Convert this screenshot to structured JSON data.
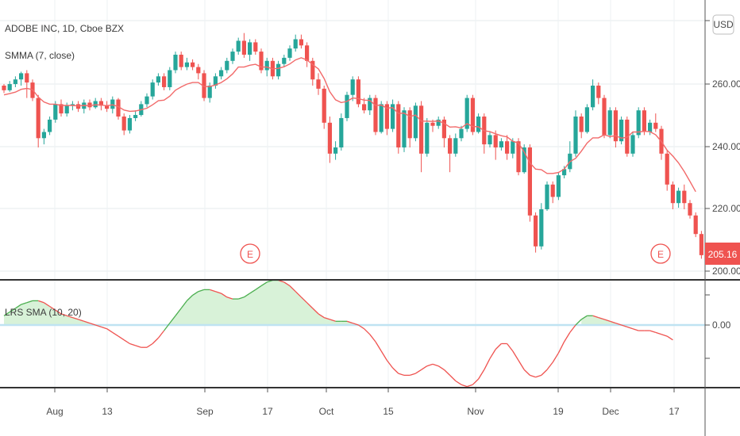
{
  "header": {
    "symbol_title": "ADOBE INC, 1D, Cboe BZX",
    "indicator1": "SMMA (7, close)",
    "indicator2": "LRS SMA (10, 20)",
    "currency_button": "USD"
  },
  "price_badge": "205.16",
  "earnings_marker": "E",
  "colors": {
    "up": "#26a69a",
    "down": "#ef5350",
    "smma": "#f26a6a",
    "lrs_up": "#4caf50",
    "lrs_down": "#ef5350",
    "fill": "#d8f2d8",
    "zero_line": "#bfe3f2"
  },
  "chart_data": [
    {
      "type": "candlestick",
      "title": "ADOBE INC, 1D, Cboe BZX",
      "ylim": [
        200,
        280
      ],
      "yticks": [
        "260.00",
        "240.00",
        "220.00",
        "200.00"
      ],
      "x_ticks": [
        "Aug",
        "13",
        "Sep",
        "17",
        "Oct",
        "15",
        "Nov",
        "19",
        "Dec",
        "17"
      ],
      "candles": [
        [
          260.0,
          258.5,
          260.5,
          257.6
        ],
        [
          258.5,
          260.5,
          261.5,
          258.0
        ],
        [
          260.5,
          262.0,
          263.0,
          259.5
        ],
        [
          262.0,
          264.0,
          264.5,
          260.0
        ],
        [
          264.0,
          261.0,
          265.0,
          256.0
        ],
        [
          261.0,
          256.0,
          262.0,
          255.0
        ],
        [
          256.0,
          243.0,
          257.0,
          240.0
        ],
        [
          243.0,
          245.0,
          246.0,
          241.0
        ],
        [
          245.0,
          249.0,
          250.0,
          244.0
        ],
        [
          249.0,
          254.0,
          255.0,
          248.0
        ],
        [
          254.0,
          251.0,
          255.5,
          250.0
        ],
        [
          251.0,
          253.5,
          254.5,
          250.0
        ],
        [
          253.5,
          254.0,
          255.0,
          252.0
        ],
        [
          254.0,
          252.5,
          255.0,
          251.5
        ],
        [
          252.5,
          254.5,
          255.5,
          251.0
        ],
        [
          254.5,
          253.0,
          255.5,
          252.0
        ],
        [
          253.0,
          255.0,
          256.0,
          252.5
        ],
        [
          255.0,
          253.5,
          256.0,
          252.0
        ],
        [
          253.5,
          252.5,
          255.0,
          251.5
        ],
        [
          252.5,
          255.5,
          256.5,
          251.0
        ],
        [
          255.5,
          250.0,
          256.0,
          249.0
        ],
        [
          250.0,
          245.5,
          251.0,
          244.0
        ],
        [
          245.5,
          249.5,
          250.5,
          244.5
        ],
        [
          249.5,
          250.5,
          252.0,
          248.5
        ],
        [
          250.5,
          254.0,
          255.0,
          250.0
        ],
        [
          254.0,
          256.5,
          257.5,
          253.0
        ],
        [
          256.5,
          261.0,
          262.0,
          255.5
        ],
        [
          261.0,
          263.0,
          264.0,
          260.0
        ],
        [
          263.0,
          259.5,
          264.0,
          258.5
        ],
        [
          259.5,
          265.0,
          266.0,
          258.5
        ],
        [
          265.0,
          270.0,
          271.0,
          264.0
        ],
        [
          270.0,
          266.0,
          271.0,
          265.0
        ],
        [
          266.0,
          267.5,
          269.0,
          265.0
        ],
        [
          267.5,
          266.0,
          268.5,
          265.0
        ],
        [
          266.0,
          264.0,
          267.0,
          262.0
        ],
        [
          264.0,
          256.0,
          265.0,
          255.0
        ],
        [
          256.0,
          260.0,
          261.0,
          254.5
        ],
        [
          260.0,
          263.0,
          264.0,
          259.0
        ],
        [
          263.0,
          265.0,
          266.0,
          262.0
        ],
        [
          265.0,
          268.0,
          269.0,
          264.0
        ],
        [
          268.0,
          271.0,
          272.0,
          267.0
        ],
        [
          271.0,
          274.5,
          275.5,
          270.0
        ],
        [
          274.5,
          270.0,
          277.0,
          269.0
        ],
        [
          270.0,
          274.0,
          275.0,
          268.0
        ],
        [
          274.0,
          271.0,
          275.0,
          270.0
        ],
        [
          271.0,
          265.0,
          272.0,
          264.0
        ],
        [
          265.0,
          268.0,
          269.0,
          263.0
        ],
        [
          268.0,
          263.0,
          269.0,
          262.0
        ],
        [
          263.0,
          267.0,
          268.0,
          262.0
        ],
        [
          267.0,
          269.0,
          270.0,
          266.0
        ],
        [
          269.0,
          272.0,
          273.0,
          268.0
        ],
        [
          272.0,
          275.0,
          276.5,
          271.0
        ],
        [
          275.0,
          273.0,
          276.5,
          272.0
        ],
        [
          273.0,
          268.0,
          274.0,
          266.0
        ],
        [
          268.0,
          262.0,
          269.0,
          260.0
        ],
        [
          262.0,
          259.0,
          264.0,
          257.0
        ],
        [
          259.0,
          248.0,
          260.0,
          246.0
        ],
        [
          248.0,
          238.0,
          250.0,
          235.0
        ],
        [
          238.0,
          240.0,
          242.0,
          236.0
        ],
        [
          240.0,
          249.5,
          251.0,
          239.0
        ],
        [
          249.5,
          257.0,
          258.0,
          248.5
        ],
        [
          257.0,
          262.0,
          263.0,
          255.0
        ],
        [
          262.0,
          254.0,
          263.0,
          253.0
        ],
        [
          254.0,
          252.0,
          256.0,
          251.0
        ],
        [
          252.0,
          256.0,
          257.0,
          250.5
        ],
        [
          256.0,
          245.0,
          257.0,
          244.0
        ],
        [
          245.0,
          254.0,
          255.0,
          244.5
        ],
        [
          254.0,
          246.0,
          255.0,
          244.0
        ],
        [
          246.0,
          254.0,
          255.5,
          245.0
        ],
        [
          254.0,
          240.0,
          255.0,
          238.0
        ],
        [
          240.0,
          252.0,
          253.0,
          238.5
        ],
        [
          252.0,
          243.0,
          253.0,
          240.0
        ],
        [
          243.0,
          253.5,
          254.5,
          242.0
        ],
        [
          253.5,
          238.0,
          255.0,
          232.0
        ],
        [
          238.0,
          248.0,
          249.5,
          237.0
        ],
        [
          248.0,
          247.0,
          249.0,
          245.0
        ],
        [
          247.0,
          249.0,
          250.0,
          246.0
        ],
        [
          249.0,
          243.0,
          250.0,
          240.0
        ],
        [
          243.0,
          238.0,
          244.0,
          232.0
        ],
        [
          238.0,
          243.0,
          244.5,
          237.0
        ],
        [
          243.0,
          246.0,
          247.0,
          242.0
        ],
        [
          246.0,
          256.0,
          257.0,
          245.0
        ],
        [
          256.0,
          245.0,
          257.0,
          244.0
        ],
        [
          245.0,
          250.0,
          251.0,
          244.5
        ],
        [
          250.0,
          241.0,
          251.0,
          238.0
        ],
        [
          241.0,
          244.0,
          245.0,
          240.0
        ],
        [
          244.0,
          240.0,
          245.5,
          236.0
        ],
        [
          240.0,
          242.0,
          243.0,
          239.0
        ],
        [
          242.0,
          238.0,
          244.0,
          236.0
        ],
        [
          238.0,
          242.0,
          243.0,
          236.5
        ],
        [
          242.0,
          232.0,
          243.0,
          231.0
        ],
        [
          232.0,
          240.0,
          241.0,
          231.5
        ],
        [
          240.0,
          218.0,
          241.0,
          216.0
        ],
        [
          218.0,
          208.0,
          219.0,
          206.0
        ],
        [
          208.0,
          220.0,
          222.0,
          207.0
        ],
        [
          220.0,
          228.0,
          229.0,
          219.5
        ],
        [
          228.0,
          224.0,
          229.0,
          222.0
        ],
        [
          224.0,
          231.0,
          232.0,
          223.0
        ],
        [
          231.0,
          233.0,
          234.0,
          230.0
        ],
        [
          233.0,
          238.0,
          242.0,
          232.0
        ],
        [
          238.0,
          250.0,
          252.0,
          237.0
        ],
        [
          250.0,
          245.0,
          251.0,
          243.0
        ],
        [
          245.0,
          253.0,
          254.0,
          244.5
        ],
        [
          253.0,
          260.0,
          262.0,
          252.0
        ],
        [
          260.0,
          256.0,
          261.0,
          254.0
        ],
        [
          256.0,
          244.0,
          257.0,
          243.0
        ],
        [
          244.0,
          252.0,
          253.0,
          243.0
        ],
        [
          252.0,
          242.0,
          253.0,
          240.0
        ],
        [
          242.0,
          249.0,
          250.0,
          241.0
        ],
        [
          249.0,
          238.0,
          250.0,
          237.0
        ],
        [
          238.0,
          244.0,
          245.0,
          237.0
        ],
        [
          244.0,
          252.0,
          253.0,
          243.0
        ],
        [
          252.0,
          245.0,
          253.0,
          244.0
        ],
        [
          245.0,
          248.0,
          249.0,
          244.0
        ],
        [
          248.0,
          246.0,
          251.0,
          245.0
        ],
        [
          246.0,
          238.0,
          247.0,
          236.0
        ],
        [
          238.0,
          228.0,
          239.0,
          226.0
        ],
        [
          228.0,
          222.0,
          229.0,
          220.0
        ],
        [
          222.0,
          226.0,
          227.0,
          220.5
        ],
        [
          226.0,
          222.0,
          228.0,
          220.0
        ],
        [
          222.0,
          218.0,
          223.0,
          217.0
        ],
        [
          218.0,
          212.0,
          219.0,
          211.0
        ],
        [
          212.0,
          205.16,
          213.0,
          204.0
        ]
      ],
      "smma": [
        257.0,
        257.4,
        257.9,
        258.8,
        259.1,
        258.7,
        256.3,
        254.7,
        254.0,
        254.0,
        253.6,
        253.6,
        253.6,
        253.4,
        253.6,
        253.5,
        253.8,
        253.7,
        253.5,
        253.8,
        253.2,
        252.1,
        251.7,
        251.8,
        252.2,
        252.7,
        253.8,
        255.1,
        255.3,
        256.6,
        258.5,
        259.6,
        260.5,
        261.0,
        261.0,
        259.7,
        259.7,
        260.2,
        261.0,
        262.2,
        263.8,
        266.0,
        266.0,
        266.6,
        266.9,
        266.0,
        266.0,
        265.4,
        265.6,
        266.1,
        267.0,
        268.3,
        269.0,
        268.3,
        266.8,
        265.4,
        262.3,
        258.0,
        255.4,
        254.5,
        254.9,
        256.0,
        255.8,
        255.3,
        255.2,
        253.6,
        253.7,
        252.7,
        252.9,
        251.0,
        251.1,
        250.0,
        250.5,
        248.5,
        248.5,
        248.4,
        248.6,
        247.8,
        246.6,
        246.7,
        246.3,
        247.7,
        246.8,
        246.7,
        245.4,
        245.1,
        244.4,
        243.8,
        243.4,
        242.0,
        241.4,
        238.5,
        235.0,
        233.0,
        232.8,
        231.6,
        231.6,
        231.9,
        233.0,
        235.4,
        236.5,
        238.8,
        241.4,
        243.1,
        243.1,
        244.1,
        243.5,
        243.8,
        243.0,
        243.3,
        245.0,
        245.0,
        245.2,
        245.1,
        244.1,
        241.9,
        239.1,
        237.2,
        235.0,
        232.2,
        229.0,
        225.7
      ]
    },
    {
      "type": "line",
      "title": "LRS SMA (10, 20)",
      "yticks": [
        "0.00"
      ],
      "values": [
        0.05,
        0.07,
        0.09,
        0.11,
        0.12,
        0.13,
        0.13,
        0.12,
        0.1,
        0.08,
        0.06,
        0.05,
        0.04,
        0.03,
        0.02,
        0.01,
        0.0,
        -0.01,
        -0.02,
        -0.04,
        -0.06,
        -0.08,
        -0.1,
        -0.11,
        -0.12,
        -0.12,
        -0.1,
        -0.07,
        -0.03,
        0.01,
        0.05,
        0.09,
        0.13,
        0.16,
        0.18,
        0.19,
        0.19,
        0.18,
        0.17,
        0.15,
        0.14,
        0.14,
        0.15,
        0.17,
        0.19,
        0.21,
        0.23,
        0.24,
        0.24,
        0.23,
        0.21,
        0.18,
        0.15,
        0.12,
        0.09,
        0.06,
        0.04,
        0.03,
        0.02,
        0.02,
        0.02,
        0.01,
        0.0,
        -0.02,
        -0.05,
        -0.09,
        -0.14,
        -0.19,
        -0.23,
        -0.26,
        -0.27,
        -0.27,
        -0.26,
        -0.24,
        -0.22,
        -0.21,
        -0.22,
        -0.24,
        -0.27,
        -0.3,
        -0.32,
        -0.33,
        -0.32,
        -0.29,
        -0.24,
        -0.18,
        -0.13,
        -0.1,
        -0.1,
        -0.14,
        -0.19,
        -0.24,
        -0.27,
        -0.28,
        -0.27,
        -0.24,
        -0.2,
        -0.15,
        -0.09,
        -0.04,
        0.0,
        0.03,
        0.05,
        0.05,
        0.04,
        0.03,
        0.02,
        0.01,
        0.0,
        -0.01,
        -0.02,
        -0.03,
        -0.03,
        -0.03,
        -0.04,
        -0.05,
        -0.06,
        -0.08
      ],
      "ylim": [
        -0.38,
        0.3
      ]
    }
  ]
}
